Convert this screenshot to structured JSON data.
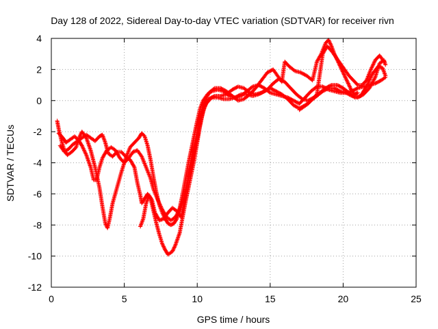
{
  "chart_data": {
    "type": "scatter",
    "title": "Day 128 of 2022, Sidereal Day-to-day VTEC variation (SDTVAR) for receiver rivn",
    "xlabel": "GPS time / hours",
    "ylabel": "SDTVAR / TECUs",
    "xlim": [
      0,
      25
    ],
    "ylim": [
      -12,
      4
    ],
    "xticks": [
      0,
      5,
      10,
      15,
      20,
      25
    ],
    "yticks": [
      -12,
      -10,
      -8,
      -6,
      -4,
      -2,
      0,
      2,
      4
    ],
    "grid": true,
    "marker": "plus",
    "color": "#ff0000",
    "series": [
      {
        "values": [
          [
            0.4,
            -1.3
          ],
          [
            0.5,
            -1.8
          ],
          [
            0.7,
            -2.6
          ],
          [
            0.9,
            -3.2
          ],
          [
            1.1,
            -3.5
          ],
          [
            1.4,
            -3.3
          ],
          [
            1.7,
            -3.0
          ],
          [
            1.9,
            -2.4
          ],
          [
            2.1,
            -2.0
          ],
          [
            2.4,
            -2.4
          ],
          [
            2.7,
            -3.2
          ],
          [
            3.0,
            -4.3
          ],
          [
            3.3,
            -5.6
          ],
          [
            3.5,
            -6.8
          ],
          [
            3.7,
            -7.9
          ],
          [
            3.85,
            -8.2
          ],
          [
            4.0,
            -7.6
          ],
          [
            4.2,
            -6.6
          ],
          [
            4.5,
            -5.6
          ],
          [
            4.8,
            -4.6
          ],
          [
            5.1,
            -3.7
          ],
          [
            5.4,
            -3.0
          ],
          [
            5.7,
            -2.7
          ],
          [
            6.0,
            -2.4
          ],
          [
            6.2,
            -2.1
          ],
          [
            6.4,
            -2.3
          ],
          [
            6.6,
            -2.9
          ],
          [
            6.8,
            -3.8
          ],
          [
            7.0,
            -4.9
          ],
          [
            7.2,
            -5.9
          ],
          [
            7.4,
            -6.7
          ],
          [
            7.6,
            -7.2
          ],
          [
            7.8,
            -7.6
          ],
          [
            8.0,
            -7.9
          ],
          [
            8.2,
            -8.0
          ],
          [
            8.4,
            -7.9
          ],
          [
            8.6,
            -7.6
          ],
          [
            8.8,
            -6.9
          ],
          [
            9.0,
            -6.0
          ],
          [
            9.2,
            -5.0
          ],
          [
            9.4,
            -4.0
          ],
          [
            9.6,
            -3.1
          ],
          [
            9.8,
            -2.2
          ],
          [
            10.0,
            -1.3
          ],
          [
            10.2,
            -0.5
          ],
          [
            10.4,
            0.0
          ],
          [
            10.7,
            0.4
          ],
          [
            11.0,
            0.6
          ],
          [
            11.4,
            0.7
          ],
          [
            11.8,
            0.6
          ],
          [
            12.2,
            0.3
          ],
          [
            12.6,
            0.2
          ],
          [
            13.0,
            0.3
          ],
          [
            13.4,
            0.6
          ],
          [
            13.8,
            0.9
          ],
          [
            14.2,
            1.0
          ],
          [
            14.6,
            0.8
          ],
          [
            15.0,
            0.5
          ],
          [
            15.4,
            0.4
          ],
          [
            15.8,
            0.3
          ],
          [
            16.2,
            0.2
          ],
          [
            16.6,
            0.0
          ],
          [
            17.0,
            -0.2
          ],
          [
            17.4,
            0.2
          ],
          [
            17.8,
            0.6
          ],
          [
            18.2,
            0.9
          ],
          [
            18.6,
            0.9
          ],
          [
            19.0,
            0.7
          ],
          [
            19.4,
            0.6
          ],
          [
            19.8,
            0.5
          ],
          [
            20.2,
            0.5
          ],
          [
            20.6,
            0.3
          ],
          [
            21.0,
            0.2
          ],
          [
            21.4,
            0.4
          ],
          [
            21.8,
            0.8
          ],
          [
            22.2,
            1.5
          ],
          [
            22.5,
            2.4
          ],
          [
            22.8,
            2.6
          ],
          [
            22.9,
            2.3
          ]
        ]
      },
      {
        "values": [
          [
            0.5,
            -2.1
          ],
          [
            0.8,
            -2.4
          ],
          [
            1.0,
            -2.7
          ],
          [
            1.3,
            -2.5
          ],
          [
            1.6,
            -2.3
          ],
          [
            1.9,
            -2.6
          ],
          [
            2.1,
            -2.9
          ],
          [
            2.4,
            -3.5
          ],
          [
            2.7,
            -4.3
          ],
          [
            2.9,
            -5.1
          ],
          [
            3.1,
            -5.1
          ],
          [
            3.3,
            -4.3
          ],
          [
            3.5,
            -3.7
          ],
          [
            3.8,
            -3.2
          ],
          [
            4.1,
            -3.0
          ],
          [
            4.4,
            -3.2
          ],
          [
            4.7,
            -3.7
          ],
          [
            5.0,
            -4.0
          ],
          [
            5.3,
            -3.7
          ],
          [
            5.6,
            -3.3
          ],
          [
            5.9,
            -3.2
          ],
          [
            6.2,
            -3.6
          ],
          [
            6.5,
            -4.3
          ],
          [
            6.8,
            -5.0
          ],
          [
            7.0,
            -5.7
          ],
          [
            7.3,
            -6.4
          ],
          [
            7.6,
            -7.0
          ],
          [
            7.9,
            -7.5
          ],
          [
            8.2,
            -7.7
          ],
          [
            8.5,
            -7.5
          ],
          [
            8.8,
            -7.0
          ],
          [
            9.1,
            -6.3
          ],
          [
            9.3,
            -5.4
          ],
          [
            9.5,
            -4.5
          ],
          [
            9.7,
            -3.7
          ],
          [
            9.9,
            -2.9
          ],
          [
            10.1,
            -2.0
          ],
          [
            10.3,
            -1.1
          ],
          [
            10.5,
            -0.4
          ],
          [
            10.8,
            0.1
          ],
          [
            11.2,
            0.3
          ],
          [
            11.6,
            0.3
          ],
          [
            12.0,
            0.4
          ],
          [
            12.4,
            0.7
          ],
          [
            12.8,
            0.9
          ],
          [
            13.2,
            0.8
          ],
          [
            13.6,
            0.5
          ],
          [
            14.0,
            0.4
          ],
          [
            14.4,
            0.5
          ],
          [
            14.8,
            0.7
          ],
          [
            15.2,
            1.1
          ],
          [
            15.6,
            1.4
          ],
          [
            16.0,
            1.2
          ],
          [
            16.4,
            0.8
          ],
          [
            16.8,
            0.4
          ],
          [
            17.2,
            0.1
          ],
          [
            17.6,
            0.0
          ],
          [
            18.0,
            0.2
          ],
          [
            18.4,
            0.5
          ],
          [
            18.8,
            0.8
          ],
          [
            19.2,
            1.0
          ],
          [
            19.6,
            1.0
          ],
          [
            20.0,
            0.8
          ],
          [
            20.4,
            0.5
          ],
          [
            20.8,
            0.2
          ],
          [
            21.2,
            0.3
          ],
          [
            21.6,
            0.9
          ],
          [
            22.0,
            1.7
          ],
          [
            22.4,
            2.2
          ],
          [
            22.7,
            2.1
          ],
          [
            22.9,
            1.6
          ]
        ]
      },
      {
        "values": [
          [
            0.6,
            -2.9
          ],
          [
            0.9,
            -3.3
          ],
          [
            1.2,
            -3.1
          ],
          [
            1.5,
            -2.8
          ],
          [
            1.8,
            -2.6
          ],
          [
            2.1,
            -2.4
          ],
          [
            2.4,
            -2.2
          ],
          [
            2.7,
            -2.4
          ],
          [
            3.0,
            -2.6
          ],
          [
            3.3,
            -2.3
          ],
          [
            3.5,
            -2.2
          ],
          [
            3.7,
            -2.7
          ],
          [
            3.9,
            -3.4
          ],
          [
            4.2,
            -3.6
          ],
          [
            4.5,
            -3.3
          ],
          [
            4.8,
            -3.3
          ],
          [
            5.1,
            -3.6
          ],
          [
            5.4,
            -3.8
          ],
          [
            5.7,
            -4.3
          ],
          [
            5.9,
            -5.3
          ],
          [
            6.1,
            -6.1
          ],
          [
            6.2,
            -6.6
          ],
          [
            6.4,
            -6.3
          ],
          [
            6.6,
            -6.0
          ],
          [
            6.8,
            -6.3
          ],
          [
            7.0,
            -7.1
          ],
          [
            7.2,
            -7.9
          ],
          [
            7.4,
            -8.6
          ],
          [
            7.6,
            -9.2
          ],
          [
            7.8,
            -9.6
          ],
          [
            8.0,
            -9.9
          ],
          [
            8.3,
            -9.7
          ],
          [
            8.5,
            -9.3
          ],
          [
            8.8,
            -8.5
          ],
          [
            9.0,
            -7.5
          ],
          [
            9.2,
            -6.5
          ],
          [
            9.4,
            -5.6
          ],
          [
            9.6,
            -4.7
          ],
          [
            9.8,
            -3.8
          ],
          [
            10.0,
            -2.7
          ],
          [
            10.2,
            -1.6
          ],
          [
            10.4,
            -0.7
          ],
          [
            10.6,
            -0.2
          ],
          [
            11.0,
            0.2
          ],
          [
            11.4,
            0.2
          ],
          [
            11.8,
            0.1
          ],
          [
            12.2,
            0.1
          ],
          [
            12.6,
            0.2
          ],
          [
            13.0,
            0.4
          ],
          [
            13.4,
            0.4
          ],
          [
            13.8,
            0.3
          ],
          [
            14.2,
            0.4
          ],
          [
            14.6,
            0.6
          ],
          [
            15.0,
            0.8
          ],
          [
            15.4,
            0.6
          ],
          [
            15.8,
            0.4
          ],
          [
            16.2,
            0.1
          ],
          [
            16.6,
            -0.3
          ],
          [
            17.0,
            -0.5
          ],
          [
            17.4,
            -0.3
          ],
          [
            17.8,
            0.0
          ],
          [
            18.2,
            0.3
          ],
          [
            18.6,
            0.6
          ],
          [
            19.0,
            0.8
          ],
          [
            19.4,
            0.8
          ],
          [
            19.8,
            0.6
          ],
          [
            20.2,
            0.5
          ],
          [
            20.6,
            0.6
          ],
          [
            21.0,
            0.8
          ],
          [
            21.4,
            0.9
          ],
          [
            21.8,
            1.0
          ],
          [
            22.2,
            1.1
          ],
          [
            22.6,
            1.3
          ],
          [
            22.9,
            1.5
          ]
        ]
      },
      {
        "values": [
          [
            6.1,
            -8.1
          ],
          [
            6.3,
            -7.6
          ],
          [
            6.5,
            -6.6
          ],
          [
            6.7,
            -6.1
          ],
          [
            6.9,
            -6.4
          ],
          [
            7.1,
            -7.2
          ],
          [
            7.4,
            -7.7
          ],
          [
            7.7,
            -7.6
          ],
          [
            8.0,
            -7.2
          ],
          [
            8.3,
            -6.9
          ],
          [
            8.6,
            -7.1
          ],
          [
            8.9,
            -7.5
          ],
          [
            9.0,
            -7.0
          ],
          [
            9.2,
            -6.0
          ],
          [
            9.4,
            -5.0
          ],
          [
            9.6,
            -4.0
          ],
          [
            9.8,
            -3.0
          ],
          [
            10.0,
            -2.0
          ],
          [
            10.2,
            -1.0
          ],
          [
            10.4,
            -0.3
          ],
          [
            10.8,
            0.5
          ],
          [
            11.2,
            0.8
          ],
          [
            11.6,
            0.8
          ],
          [
            12.0,
            0.6
          ],
          [
            12.4,
            0.3
          ],
          [
            12.8,
            0.0
          ],
          [
            13.2,
            0.1
          ],
          [
            13.6,
            0.4
          ],
          [
            14.0,
            0.8
          ],
          [
            14.4,
            1.3
          ],
          [
            14.8,
            1.8
          ],
          [
            15.2,
            2.0
          ],
          [
            15.5,
            1.6
          ],
          [
            15.8,
            1.2
          ],
          [
            16.0,
            2.5
          ],
          [
            16.3,
            2.2
          ],
          [
            16.7,
            1.9
          ],
          [
            17.1,
            1.8
          ],
          [
            17.5,
            1.6
          ],
          [
            17.9,
            1.3
          ],
          [
            18.2,
            2.5
          ],
          [
            18.5,
            3.0
          ],
          [
            18.8,
            3.7
          ],
          [
            19.0,
            3.9
          ],
          [
            19.2,
            3.5
          ],
          [
            19.4,
            3.0
          ],
          [
            19.6,
            2.6
          ],
          [
            19.8,
            2.2
          ],
          [
            20.0,
            1.8
          ],
          [
            20.2,
            1.4
          ],
          [
            20.4,
            1.0
          ],
          [
            20.6,
            0.6
          ],
          [
            20.8,
            0.4
          ],
          [
            21.0,
            0.5
          ]
        ]
      },
      {
        "values": [
          [
            17.0,
            -0.6
          ],
          [
            17.3,
            -0.4
          ],
          [
            17.6,
            -0.2
          ],
          [
            17.9,
            0.1
          ],
          [
            18.2,
            0.4
          ],
          [
            18.6,
            3.0
          ],
          [
            18.9,
            3.5
          ],
          [
            19.2,
            3.2
          ],
          [
            19.5,
            2.8
          ],
          [
            19.8,
            2.4
          ],
          [
            20.1,
            2.0
          ],
          [
            20.4,
            1.6
          ],
          [
            20.7,
            1.3
          ],
          [
            21.0,
            1.0
          ],
          [
            21.3,
            1.0
          ],
          [
            21.6,
            1.3
          ],
          [
            21.9,
            2.0
          ],
          [
            22.2,
            2.6
          ],
          [
            22.5,
            2.9
          ],
          [
            22.8,
            2.5
          ]
        ]
      }
    ]
  }
}
